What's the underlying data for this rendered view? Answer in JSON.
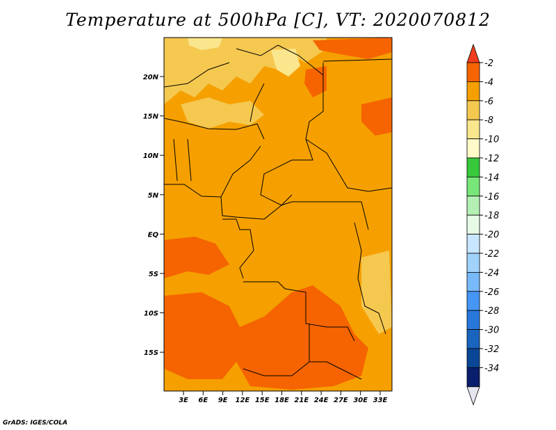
{
  "title": "Temperature at 500hPa [C], VT: 2020070812",
  "credit": "GrADS: IGES/COLA",
  "map": {
    "lat_labels": [
      "20N",
      "15N",
      "10N",
      "5N",
      "EQ",
      "5S",
      "10S",
      "15S"
    ],
    "lon_labels": [
      "3E",
      "6E",
      "9E",
      "12E",
      "15E",
      "18E",
      "21E",
      "24E",
      "27E",
      "30E",
      "33E"
    ],
    "colors": {
      "background_field": "#f5a000",
      "warm_patches": "#f56400",
      "cool_patches": "#f5c850",
      "coolest_patches": "#fae68c",
      "borders": "#000000"
    }
  },
  "colorbar": {
    "labels": [
      "-2",
      "-4",
      "-6",
      "-8",
      "-10",
      "-12",
      "-14",
      "-16",
      "-18",
      "-20",
      "-22",
      "-24",
      "-26",
      "-28",
      "-30",
      "-32",
      "-34"
    ],
    "colors": [
      "#f03c1e",
      "#f56400",
      "#f5a000",
      "#f5c850",
      "#fae68c",
      "#fffac8",
      "#37c83c",
      "#78e678",
      "#b4f0b4",
      "#e6fae6",
      "#c8e6ff",
      "#a0d2fa",
      "#78b9fa",
      "#4696f5",
      "#2878dc",
      "#1964be",
      "#0a4696",
      "#0a1e6e",
      "#e6e6f0"
    ]
  }
}
